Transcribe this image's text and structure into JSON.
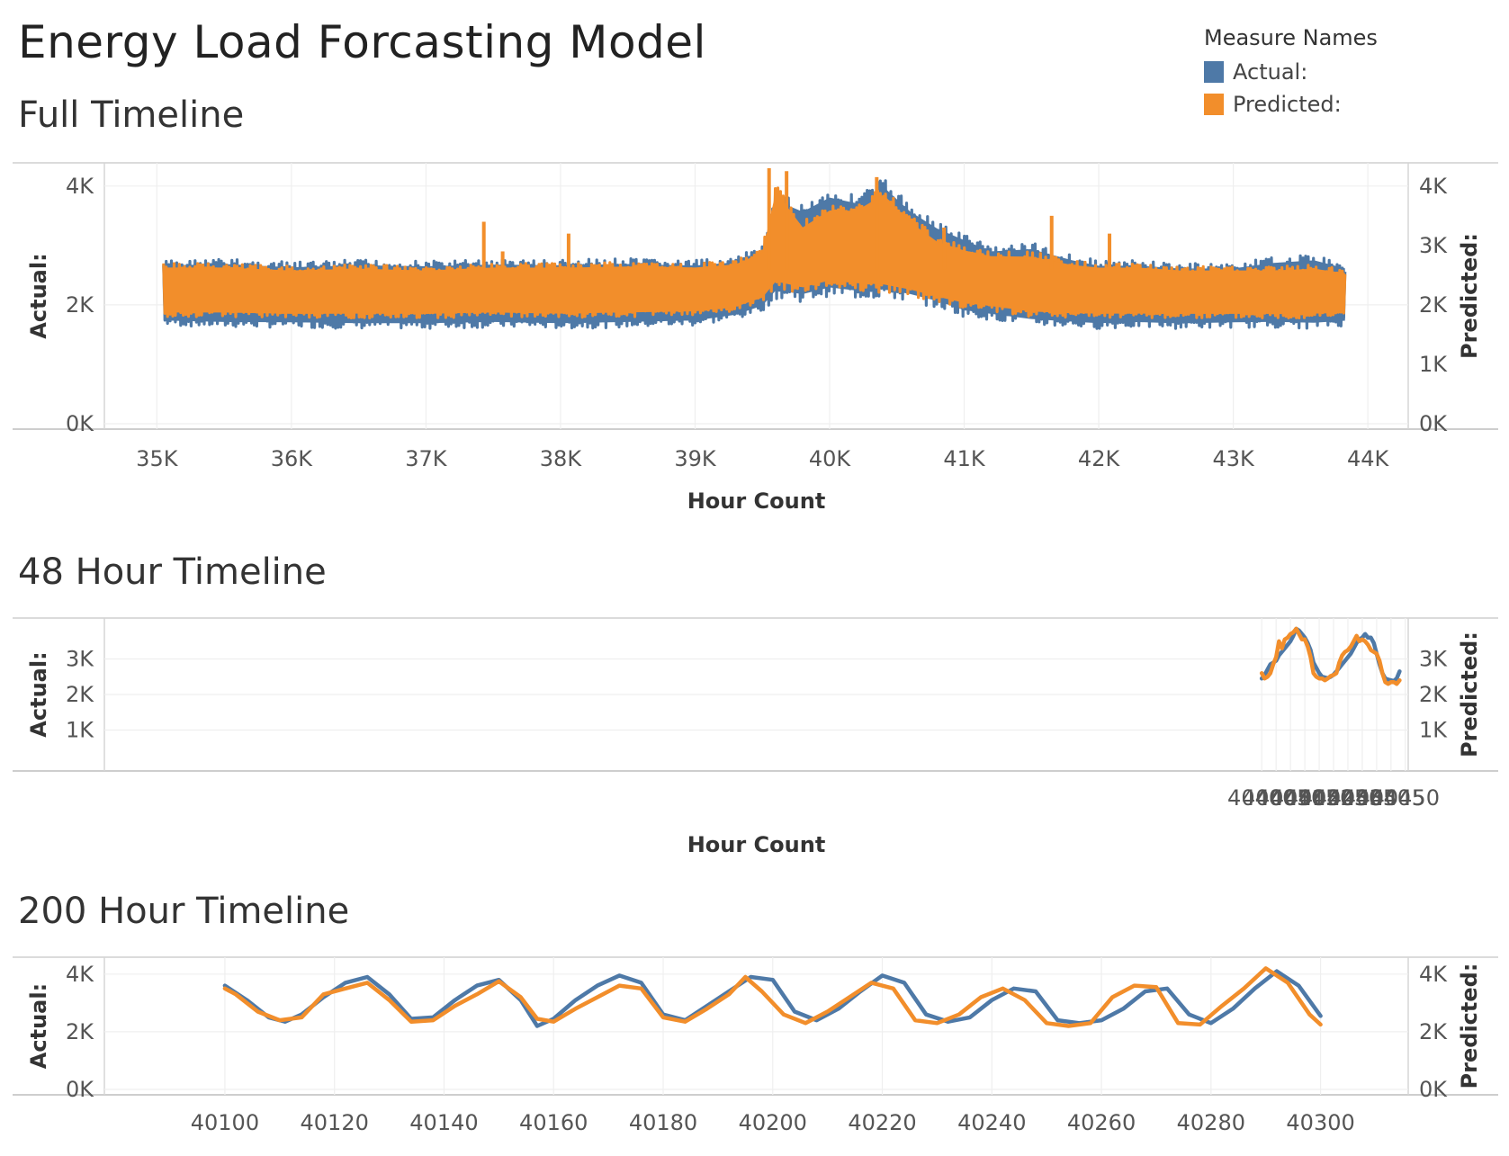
{
  "page": {
    "title": "Energy Load Forcasting Model"
  },
  "legend": {
    "title": "Measure Names",
    "items": [
      {
        "label": "Actual:",
        "color": "#4e79a7"
      },
      {
        "label": "Predicted:",
        "color": "#f28e2b"
      }
    ]
  },
  "chart_data": [
    {
      "type": "line",
      "title": "Full Timeline",
      "xlabel": "Hour Count",
      "ylabel_left": "Actual:",
      "ylabel_right": "Predicted:",
      "xlim": [
        34610,
        44300
      ],
      "ylim_left": [
        0,
        4300
      ],
      "ylim_right": [
        0,
        4300
      ],
      "x_ticks": [
        35000,
        36000,
        37000,
        38000,
        39000,
        40000,
        41000,
        42000,
        43000,
        44000
      ],
      "x_tick_labels": [
        "35K",
        "36K",
        "37K",
        "38K",
        "39K",
        "40K",
        "41K",
        "42K",
        "43K",
        "44K"
      ],
      "y_ticks_left": [
        0,
        2000,
        4000
      ],
      "y_tick_labels_left": [
        "0K",
        "2K",
        "4K"
      ],
      "y_ticks_right": [
        0,
        1000,
        2000,
        3000,
        4000
      ],
      "y_tick_labels_right": [
        "0K",
        "1K",
        "2K",
        "3K",
        "4K"
      ],
      "grid": true,
      "series": [
        {
          "name": "Actual:",
          "color": "#4e79a7",
          "style": "band",
          "x": [
            35050,
            35500,
            36000,
            36500,
            37000,
            37500,
            38000,
            38500,
            39000,
            39300,
            39500,
            39600,
            39800,
            40000,
            40200,
            40400,
            40600,
            40800,
            41000,
            41200,
            41500,
            41800,
            42000,
            42300,
            42600,
            43000,
            43300,
            43600,
            43830
          ],
          "upper": [
            2750,
            2780,
            2720,
            2760,
            2740,
            2770,
            2760,
            2780,
            2750,
            2800,
            3000,
            3900,
            3700,
            3950,
            3850,
            4150,
            3700,
            3400,
            3200,
            3000,
            3050,
            2850,
            2750,
            2750,
            2700,
            2700,
            2800,
            2850,
            2700
          ],
          "lower": [
            1650,
            1620,
            1620,
            1600,
            1600,
            1620,
            1600,
            1620,
            1650,
            1750,
            1900,
            2100,
            2050,
            2150,
            2100,
            2100,
            2050,
            1950,
            1800,
            1750,
            1650,
            1620,
            1600,
            1620,
            1600,
            1620,
            1620,
            1600,
            1650
          ]
        },
        {
          "name": "Predicted:",
          "color": "#f28e2b",
          "style": "band",
          "x": [
            35050,
            35500,
            36000,
            36500,
            37000,
            37500,
            38000,
            38500,
            39000,
            39300,
            39500,
            39600,
            39800,
            40000,
            40200,
            40400,
            40600,
            40800,
            41000,
            41200,
            41500,
            41800,
            42000,
            42300,
            42600,
            43000,
            43300,
            43600,
            43830
          ],
          "upper": [
            2700,
            2700,
            2650,
            2680,
            2650,
            2700,
            2700,
            2720,
            2700,
            2750,
            2950,
            4050,
            3400,
            3700,
            3700,
            4000,
            3500,
            3150,
            3000,
            2900,
            2900,
            2750,
            2700,
            2700,
            2650,
            2650,
            2650,
            2680,
            2600
          ],
          "lower": [
            1800,
            1800,
            1780,
            1780,
            1780,
            1800,
            1780,
            1800,
            1820,
            1900,
            2050,
            2250,
            2200,
            2300,
            2250,
            2200,
            2150,
            2050,
            1950,
            1900,
            1800,
            1780,
            1780,
            1780,
            1780,
            1780,
            1780,
            1780,
            1800
          ]
        }
      ],
      "spikes": [
        {
          "x": 37430,
          "y": 3400
        },
        {
          "x": 37570,
          "y": 2900
        },
        {
          "x": 38060,
          "y": 3200
        },
        {
          "x": 39550,
          "y": 4300
        },
        {
          "x": 39680,
          "y": 4250
        },
        {
          "x": 40350,
          "y": 4150
        },
        {
          "x": 40850,
          "y": 3300
        },
        {
          "x": 41650,
          "y": 3500
        },
        {
          "x": 42080,
          "y": 3200
        }
      ]
    },
    {
      "type": "line",
      "title": "48 Hour Timeline",
      "xlabel": "Hour Count",
      "ylabel_left": "Actual:",
      "ylabel_right": "Predicted:",
      "xlim": [
        39997,
        40451
      ],
      "ylim_left": [
        0,
        4000
      ],
      "ylim_right": [
        0,
        4000
      ],
      "x_ticks": [
        40400,
        40405,
        40410,
        40415,
        40420,
        40425,
        40430,
        40435,
        40440,
        40445,
        40450
      ],
      "x_tick_labels": [
        "40400",
        "40405",
        "40410",
        "40415",
        "40420",
        "40425",
        "40430",
        "40435",
        "40440",
        "40445",
        "40450"
      ],
      "y_ticks_left": [
        1000,
        2000,
        3000
      ],
      "y_tick_labels_left": [
        "1K",
        "2K",
        "3K"
      ],
      "y_ticks_right": [
        1000,
        2000,
        3000
      ],
      "y_tick_labels_right": [
        "1K",
        "2K",
        "3K"
      ],
      "grid": true,
      "series": [
        {
          "name": "Actual:",
          "color": "#4e79a7",
          "x": [
            40400,
            40401,
            40402,
            40403,
            40404,
            40405,
            40406,
            40407,
            40408,
            40409,
            40410,
            40411,
            40412,
            40413,
            40414,
            40415,
            40416,
            40417,
            40418,
            40419,
            40420,
            40421,
            40422,
            40423,
            40424,
            40425,
            40426,
            40427,
            40428,
            40429,
            40430,
            40431,
            40432,
            40433,
            40434,
            40435,
            40436,
            40437,
            40438,
            40439,
            40440,
            40441,
            40442,
            40443,
            40444,
            40445,
            40446,
            40447,
            40448
          ],
          "y": [
            2450,
            2550,
            2700,
            2850,
            2900,
            2950,
            3100,
            3200,
            3300,
            3400,
            3500,
            3650,
            3850,
            3800,
            3700,
            3600,
            3450,
            3250,
            2900,
            2750,
            2600,
            2500,
            2480,
            2460,
            2500,
            2560,
            2650,
            2750,
            2850,
            2950,
            3050,
            3150,
            3300,
            3450,
            3550,
            3600,
            3700,
            3600,
            3600,
            3450,
            3150,
            2850,
            2600,
            2450,
            2420,
            2400,
            2380,
            2450,
            2650
          ]
        },
        {
          "name": "Predicted:",
          "color": "#f28e2b",
          "x": [
            40400,
            40401,
            40402,
            40403,
            40404,
            40405,
            40406,
            40407,
            40408,
            40409,
            40410,
            40411,
            40412,
            40413,
            40414,
            40415,
            40416,
            40417,
            40418,
            40419,
            40420,
            40421,
            40422,
            40423,
            40424,
            40425,
            40426,
            40427,
            40428,
            40429,
            40430,
            40431,
            40432,
            40433,
            40434,
            40435,
            40436,
            40437,
            40438,
            40439,
            40440,
            40441,
            40442,
            40443,
            40444,
            40445,
            40446,
            40447,
            40448
          ],
          "y": [
            2600,
            2450,
            2500,
            2600,
            2850,
            3050,
            3500,
            3300,
            3550,
            3600,
            3700,
            3750,
            3850,
            3700,
            3550,
            3550,
            3350,
            3050,
            2600,
            2500,
            2450,
            2450,
            2400,
            2450,
            2520,
            2550,
            2600,
            2900,
            3100,
            3200,
            3250,
            3350,
            3500,
            3650,
            3500,
            3550,
            3500,
            3400,
            3250,
            3200,
            3150,
            2950,
            2600,
            2350,
            2300,
            2350,
            2350,
            2300,
            2400
          ]
        }
      ]
    },
    {
      "type": "line",
      "title": "200 Hour Timeline",
      "xlabel": "Hour Count",
      "ylabel_left": "Actual:",
      "ylabel_right": "Predicted:",
      "xlim": [
        40078,
        40316
      ],
      "ylim_left": [
        0,
        4400
      ],
      "ylim_right": [
        0,
        4400
      ],
      "x_ticks": [
        40100,
        40120,
        40140,
        40160,
        40180,
        40200,
        40220,
        40240,
        40260,
        40280,
        40300
      ],
      "x_tick_labels": [
        "40100",
        "40120",
        "40140",
        "40160",
        "40180",
        "40200",
        "40220",
        "40240",
        "40260",
        "40280",
        "40300"
      ],
      "y_ticks_left": [
        0,
        2000,
        4000
      ],
      "y_tick_labels_left": [
        "0K",
        "2K",
        "4K"
      ],
      "y_ticks_right": [
        0,
        2000,
        4000
      ],
      "y_tick_labels_right": [
        "0K",
        "2K",
        "4K"
      ],
      "grid": true,
      "series": [
        {
          "name": "Actual:",
          "color": "#4e79a7",
          "x": [
            40100,
            40104,
            40108,
            40111,
            40114,
            40118,
            40122,
            40126,
            40130,
            40134,
            40138,
            40142,
            40146,
            40150,
            40154,
            40157,
            40160,
            40164,
            40168,
            40172,
            40176,
            40180,
            40184,
            40188,
            40192,
            40196,
            40200,
            40204,
            40208,
            40212,
            40216,
            40220,
            40224,
            40228,
            40232,
            40236,
            40240,
            40244,
            40248,
            40252,
            40256,
            40260,
            40264,
            40268,
            40272,
            40276,
            40280,
            40284,
            40288,
            40292,
            40296,
            40300
          ],
          "y": [
            3600,
            3100,
            2500,
            2350,
            2600,
            3200,
            3700,
            3900,
            3300,
            2450,
            2500,
            3100,
            3600,
            3800,
            3100,
            2200,
            2450,
            3100,
            3600,
            3950,
            3700,
            2600,
            2400,
            2900,
            3400,
            3900,
            3800,
            2700,
            2400,
            2800,
            3400,
            3950,
            3700,
            2600,
            2350,
            2500,
            3100,
            3500,
            3400,
            2400,
            2300,
            2400,
            2800,
            3400,
            3500,
            2600,
            2300,
            2800,
            3500,
            4100,
            3600,
            2550
          ]
        },
        {
          "name": "Predicted:",
          "color": "#f28e2b",
          "x": [
            40100,
            40102,
            40106,
            40110,
            40114,
            40118,
            40122,
            40126,
            40130,
            40134,
            40138,
            40142,
            40146,
            40150,
            40154,
            40157,
            40160,
            40164,
            40168,
            40172,
            40176,
            40180,
            40184,
            40188,
            40192,
            40195,
            40198,
            40202,
            40206,
            40210,
            40214,
            40218,
            40222,
            40226,
            40230,
            40234,
            40238,
            40242,
            40246,
            40250,
            40254,
            40258,
            40262,
            40266,
            40270,
            40274,
            40278,
            40282,
            40286,
            40290,
            40294,
            40298,
            40300
          ],
          "y": [
            3500,
            3300,
            2700,
            2400,
            2500,
            3300,
            3500,
            3700,
            3100,
            2350,
            2400,
            2900,
            3300,
            3750,
            3200,
            2450,
            2350,
            2800,
            3200,
            3600,
            3500,
            2500,
            2350,
            2800,
            3300,
            3900,
            3400,
            2600,
            2300,
            2700,
            3200,
            3700,
            3500,
            2400,
            2300,
            2600,
            3200,
            3500,
            3100,
            2300,
            2200,
            2300,
            3200,
            3600,
            3550,
            2300,
            2250,
            2900,
            3500,
            4200,
            3700,
            2600,
            2250
          ]
        }
      ]
    }
  ]
}
